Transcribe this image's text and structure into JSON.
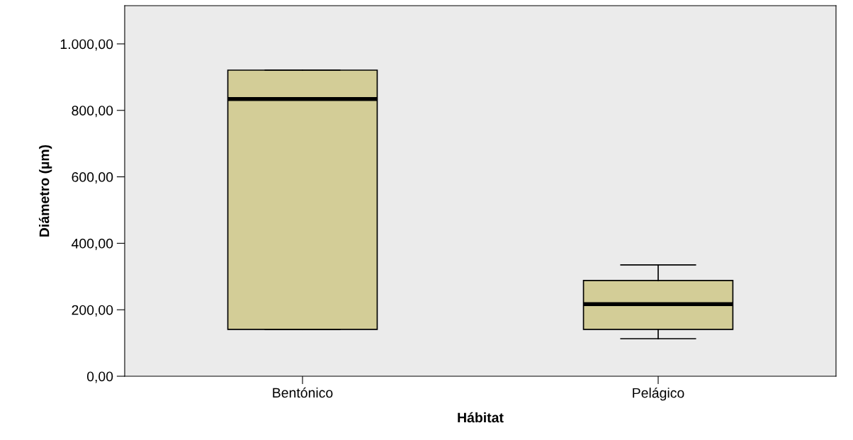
{
  "chart_data": {
    "type": "box",
    "xlabel": "Hábitat",
    "ylabel": "Diámetro (µm)",
    "categories": [
      "Bentónico",
      "Pelágico"
    ],
    "boxes": [
      {
        "low": 141,
        "q1": 141,
        "median": 834,
        "q3": 921,
        "high": 921
      },
      {
        "low": 113,
        "q1": 141,
        "median": 217,
        "q3": 288,
        "high": 335
      }
    ],
    "color": "#d3cd97",
    "ylim": [
      0,
      1115
    ],
    "yticks": [
      {
        "value": 0,
        "label": "0,00"
      },
      {
        "value": 200,
        "label": "200,00"
      },
      {
        "value": 400,
        "label": "400,00"
      },
      {
        "value": 600,
        "label": "600,00"
      },
      {
        "value": 800,
        "label": "800,00"
      },
      {
        "value": 1000,
        "label": "1.000,00"
      }
    ],
    "grid": false,
    "legend": false
  }
}
